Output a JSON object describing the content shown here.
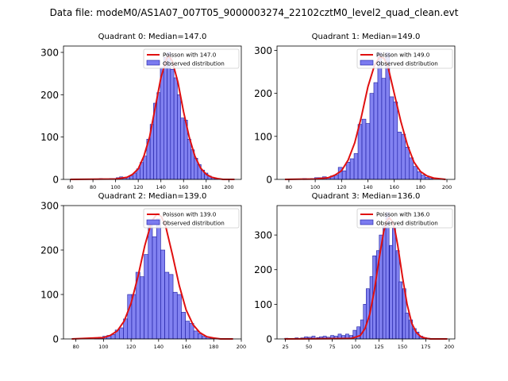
{
  "title": "Data file: modeM0/AS1A07_007T05_9000003274_22102cztM0_level2_quad_clean.evt",
  "colors": {
    "hist_fill": "#7b7bf0",
    "hist_edge": "#1a1aa0",
    "poisson": "#e01010",
    "axis": "#000000"
  },
  "chart_data": [
    {
      "type": "bar",
      "title": "Quadrant 0: Median=147.0",
      "legend": [
        "Poisson with 147.0",
        "Observed distribution"
      ],
      "legend_position": "top-right",
      "xlim": [
        54,
        211
      ],
      "ylim": [
        0,
        315
      ],
      "xticks": [
        60,
        80,
        100,
        120,
        140,
        160,
        180,
        200
      ],
      "yticks": [
        0,
        100,
        200,
        300
      ],
      "bin_width": 3,
      "bins": [
        {
          "x": 87,
          "y": 2
        },
        {
          "x": 96,
          "y": 2
        },
        {
          "x": 99,
          "y": 2
        },
        {
          "x": 102,
          "y": 4
        },
        {
          "x": 105,
          "y": 6
        },
        {
          "x": 108,
          "y": 4
        },
        {
          "x": 111,
          "y": 6
        },
        {
          "x": 114,
          "y": 8
        },
        {
          "x": 117,
          "y": 15
        },
        {
          "x": 120,
          "y": 25
        },
        {
          "x": 123,
          "y": 40
        },
        {
          "x": 126,
          "y": 55
        },
        {
          "x": 129,
          "y": 95
        },
        {
          "x": 132,
          "y": 130
        },
        {
          "x": 135,
          "y": 180
        },
        {
          "x": 138,
          "y": 205
        },
        {
          "x": 141,
          "y": 265
        },
        {
          "x": 144,
          "y": 288
        },
        {
          "x": 147,
          "y": 300
        },
        {
          "x": 150,
          "y": 260
        },
        {
          "x": 153,
          "y": 240
        },
        {
          "x": 156,
          "y": 200
        },
        {
          "x": 159,
          "y": 145
        },
        {
          "x": 162,
          "y": 140
        },
        {
          "x": 165,
          "y": 95
        },
        {
          "x": 168,
          "y": 70
        },
        {
          "x": 171,
          "y": 50
        },
        {
          "x": 174,
          "y": 35
        },
        {
          "x": 177,
          "y": 22
        },
        {
          "x": 180,
          "y": 15
        },
        {
          "x": 183,
          "y": 8
        },
        {
          "x": 186,
          "y": 4
        },
        {
          "x": 189,
          "y": 2
        }
      ],
      "poisson_curve": {
        "x": [
          60,
          100,
          110,
          115,
          120,
          125,
          130,
          135,
          140,
          145,
          147,
          150,
          155,
          160,
          165,
          170,
          175,
          180,
          185,
          190,
          195,
          205
        ],
        "y": [
          0,
          1,
          5,
          12,
          25,
          55,
          100,
          170,
          240,
          285,
          292,
          280,
          230,
          160,
          100,
          55,
          27,
          12,
          5,
          2,
          0,
          0
        ]
      }
    },
    {
      "type": "bar",
      "title": "Quadrant 1: Median=149.0",
      "legend": [
        "Poisson with 149.0",
        "Observed distribution"
      ],
      "legend_position": "top-right",
      "xlim": [
        71,
        206
      ],
      "ylim": [
        0,
        310
      ],
      "xticks": [
        80,
        100,
        120,
        140,
        160,
        180,
        200
      ],
      "yticks": [
        0,
        100,
        200,
        300
      ],
      "bin_width": 3,
      "bins": [
        {
          "x": 92,
          "y": 2
        },
        {
          "x": 98,
          "y": 2
        },
        {
          "x": 101,
          "y": 4
        },
        {
          "x": 104,
          "y": 4
        },
        {
          "x": 107,
          "y": 6
        },
        {
          "x": 110,
          "y": 4
        },
        {
          "x": 113,
          "y": 8
        },
        {
          "x": 116,
          "y": 10
        },
        {
          "x": 119,
          "y": 28
        },
        {
          "x": 122,
          "y": 20
        },
        {
          "x": 125,
          "y": 40
        },
        {
          "x": 128,
          "y": 48
        },
        {
          "x": 131,
          "y": 60
        },
        {
          "x": 134,
          "y": 128
        },
        {
          "x": 137,
          "y": 140
        },
        {
          "x": 140,
          "y": 130
        },
        {
          "x": 143,
          "y": 200
        },
        {
          "x": 146,
          "y": 225
        },
        {
          "x": 149,
          "y": 295
        },
        {
          "x": 152,
          "y": 235
        },
        {
          "x": 155,
          "y": 295
        },
        {
          "x": 158,
          "y": 192
        },
        {
          "x": 161,
          "y": 180
        },
        {
          "x": 164,
          "y": 110
        },
        {
          "x": 167,
          "y": 105
        },
        {
          "x": 170,
          "y": 75
        },
        {
          "x": 173,
          "y": 50
        },
        {
          "x": 176,
          "y": 30
        },
        {
          "x": 179,
          "y": 18
        },
        {
          "x": 182,
          "y": 10
        },
        {
          "x": 185,
          "y": 5
        },
        {
          "x": 188,
          "y": 2
        }
      ],
      "poisson_curve": {
        "x": [
          77,
          100,
          110,
          115,
          120,
          125,
          130,
          135,
          140,
          145,
          149,
          152,
          155,
          160,
          165,
          170,
          175,
          180,
          185,
          190,
          199
        ],
        "y": [
          0,
          1,
          4,
          10,
          20,
          45,
          85,
          145,
          215,
          265,
          285,
          282,
          265,
          200,
          135,
          80,
          40,
          18,
          8,
          3,
          0
        ]
      }
    },
    {
      "type": "bar",
      "title": "Quadrant 2: Median=139.0",
      "legend": [
        "Poisson with 139.0",
        "Observed distribution"
      ],
      "legend_position": "top-right",
      "xlim": [
        71,
        200
      ],
      "ylim": [
        0,
        300
      ],
      "xticks": [
        80,
        100,
        120,
        140,
        160,
        180,
        200
      ],
      "yticks": [
        0,
        100,
        200,
        300
      ],
      "bin_width": 3,
      "bins": [
        {
          "x": 95,
          "y": 2
        },
        {
          "x": 98,
          "y": 4
        },
        {
          "x": 101,
          "y": 6
        },
        {
          "x": 104,
          "y": 8
        },
        {
          "x": 107,
          "y": 10
        },
        {
          "x": 110,
          "y": 20
        },
        {
          "x": 113,
          "y": 25
        },
        {
          "x": 116,
          "y": 45
        },
        {
          "x": 119,
          "y": 100
        },
        {
          "x": 122,
          "y": 100
        },
        {
          "x": 125,
          "y": 150
        },
        {
          "x": 128,
          "y": 140
        },
        {
          "x": 131,
          "y": 190
        },
        {
          "x": 134,
          "y": 265
        },
        {
          "x": 137,
          "y": 230
        },
        {
          "x": 140,
          "y": 270
        },
        {
          "x": 143,
          "y": 200
        },
        {
          "x": 146,
          "y": 150
        },
        {
          "x": 149,
          "y": 145
        },
        {
          "x": 152,
          "y": 105
        },
        {
          "x": 155,
          "y": 100
        },
        {
          "x": 158,
          "y": 60
        },
        {
          "x": 161,
          "y": 40
        },
        {
          "x": 164,
          "y": 35
        },
        {
          "x": 167,
          "y": 18
        },
        {
          "x": 170,
          "y": 12
        },
        {
          "x": 173,
          "y": 6
        },
        {
          "x": 176,
          "y": 4
        },
        {
          "x": 179,
          "y": 2
        }
      ],
      "poisson_curve": {
        "x": [
          77,
          100,
          105,
          110,
          115,
          120,
          125,
          130,
          135,
          139,
          142,
          145,
          150,
          155,
          160,
          165,
          170,
          175,
          180,
          185,
          194
        ],
        "y": [
          0,
          3,
          8,
          18,
          40,
          80,
          140,
          210,
          265,
          282,
          275,
          255,
          190,
          120,
          65,
          32,
          14,
          5,
          2,
          0,
          0
        ]
      }
    },
    {
      "type": "bar",
      "title": "Quadrant 3: Median=136.0",
      "legend": [
        "Poisson with 136.0",
        "Observed distribution"
      ],
      "legend_position": "top-right",
      "xlim": [
        16,
        206
      ],
      "ylim": [
        0,
        385
      ],
      "xticks": [
        25,
        50,
        75,
        100,
        125,
        150,
        175,
        200
      ],
      "yticks": [
        0,
        100,
        200,
        300
      ],
      "bin_width": 3.5,
      "bins": [
        {
          "x": 26,
          "y": 2
        },
        {
          "x": 37,
          "y": 3
        },
        {
          "x": 43,
          "y": 3
        },
        {
          "x": 47,
          "y": 6
        },
        {
          "x": 51,
          "y": 5
        },
        {
          "x": 55,
          "y": 8
        },
        {
          "x": 60,
          "y": 4
        },
        {
          "x": 63,
          "y": 6
        },
        {
          "x": 67,
          "y": 8
        },
        {
          "x": 71,
          "y": 5
        },
        {
          "x": 75,
          "y": 10
        },
        {
          "x": 79,
          "y": 8
        },
        {
          "x": 83,
          "y": 14
        },
        {
          "x": 87,
          "y": 10
        },
        {
          "x": 91,
          "y": 14
        },
        {
          "x": 95,
          "y": 10
        },
        {
          "x": 99,
          "y": 25
        },
        {
          "x": 103,
          "y": 35
        },
        {
          "x": 107,
          "y": 55
        },
        {
          "x": 110,
          "y": 100
        },
        {
          "x": 113,
          "y": 145
        },
        {
          "x": 117,
          "y": 180
        },
        {
          "x": 120,
          "y": 240
        },
        {
          "x": 124,
          "y": 255
        },
        {
          "x": 127,
          "y": 300
        },
        {
          "x": 131,
          "y": 325
        },
        {
          "x": 134,
          "y": 365
        },
        {
          "x": 138,
          "y": 270
        },
        {
          "x": 141,
          "y": 320
        },
        {
          "x": 145,
          "y": 255
        },
        {
          "x": 148,
          "y": 165
        },
        {
          "x": 152,
          "y": 145
        },
        {
          "x": 155,
          "y": 75
        },
        {
          "x": 159,
          "y": 55
        },
        {
          "x": 163,
          "y": 30
        },
        {
          "x": 166,
          "y": 20
        },
        {
          "x": 170,
          "y": 8
        },
        {
          "x": 174,
          "y": 4
        },
        {
          "x": 178,
          "y": 2
        }
      ],
      "poisson_curve": {
        "x": [
          24,
          95,
          105,
          110,
          115,
          120,
          125,
          130,
          133,
          136,
          139,
          142,
          145,
          150,
          155,
          160,
          165,
          170,
          175,
          180,
          198
        ],
        "y": [
          0,
          1,
          10,
          30,
          70,
          140,
          230,
          310,
          340,
          350,
          340,
          315,
          270,
          180,
          100,
          45,
          18,
          6,
          2,
          0,
          0
        ]
      }
    }
  ]
}
